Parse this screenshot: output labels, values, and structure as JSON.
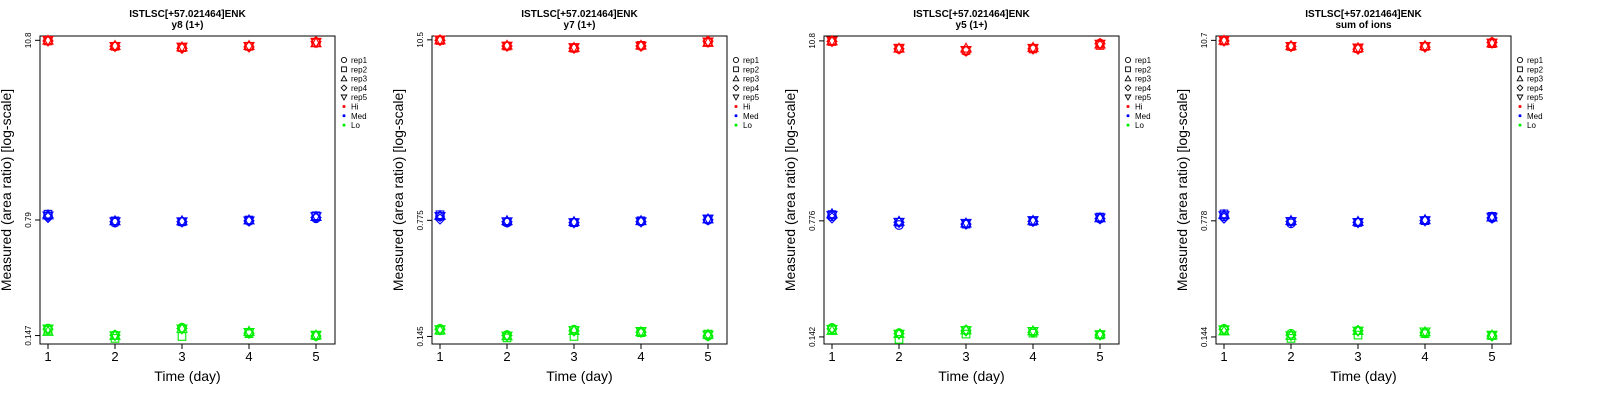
{
  "figure": {
    "xlabel": "Time (day)",
    "ylabel": "Measured (area ratio) [log-scale]",
    "legend": {
      "placement": "top-right-outside",
      "entries": [
        {
          "label": "rep1",
          "marker": "circle"
        },
        {
          "label": "rep2",
          "marker": "square"
        },
        {
          "label": "rep3",
          "marker": "triangle-up"
        },
        {
          "label": "rep4",
          "marker": "diamond"
        },
        {
          "label": "rep5",
          "marker": "triangle-down"
        },
        {
          "label": "Hi",
          "marker": "dot",
          "color": "#ff0000"
        },
        {
          "label": "Med",
          "marker": "dot",
          "color": "#0000ff"
        },
        {
          "label": "Lo",
          "marker": "dot",
          "color": "#00ee00"
        }
      ]
    },
    "colors": {
      "Hi": "#ff0000",
      "Med": "#0000ff",
      "Lo": "#00ee00"
    }
  },
  "chart_data": [
    {
      "type": "scatter",
      "title": "ISTLSC[+57.021464]ENK",
      "subtitle": "y8 (1+)",
      "y_scale": "log",
      "x": [
        1,
        2,
        3,
        4,
        5
      ],
      "yticks": [
        {
          "label": "0.147",
          "value": 0.147
        },
        {
          "label": "0.79",
          "value": 0.79
        },
        {
          "label": "10.8",
          "value": 10.8
        }
      ],
      "ylim": [
        0.13,
        11.5
      ],
      "series": [
        {
          "level": "Hi",
          "replicates": [
            [
              10.8,
              9.9,
              9.7,
              9.9,
              10.4
            ],
            [
              10.7,
              9.9,
              9.7,
              9.9,
              10.5
            ],
            [
              10.8,
              10.0,
              9.8,
              10.0,
              10.4
            ],
            [
              10.7,
              9.9,
              9.6,
              9.8,
              10.6
            ],
            [
              10.8,
              9.9,
              9.8,
              9.9,
              10.5
            ]
          ]
        },
        {
          "level": "Med",
          "replicates": [
            [
              0.84,
              0.76,
              0.77,
              0.78,
              0.81
            ],
            [
              0.86,
              0.78,
              0.77,
              0.79,
              0.84
            ],
            [
              0.85,
              0.78,
              0.78,
              0.79,
              0.83
            ],
            [
              0.82,
              0.77,
              0.77,
              0.78,
              0.82
            ],
            [
              0.84,
              0.77,
              0.77,
              0.78,
              0.83
            ]
          ]
        },
        {
          "level": "Lo",
          "replicates": [
            [
              0.163,
              0.148,
              0.165,
              0.153,
              0.146
            ],
            [
              0.159,
              0.141,
              0.145,
              0.151,
              0.147
            ],
            [
              0.156,
              0.147,
              0.163,
              0.156,
              0.148
            ],
            [
              0.161,
              0.148,
              0.163,
              0.152,
              0.146
            ],
            [
              0.162,
              0.147,
              0.162,
              0.154,
              0.148
            ]
          ]
        }
      ]
    },
    {
      "type": "scatter",
      "title": "ISTLSC[+57.021464]ENK",
      "subtitle": "y7 (1+)",
      "y_scale": "log",
      "x": [
        1,
        2,
        3,
        4,
        5
      ],
      "yticks": [
        {
          "label": "0.145",
          "value": 0.145
        },
        {
          "label": "0.775",
          "value": 0.775
        },
        {
          "label": "10.5",
          "value": 10.5
        }
      ],
      "ylim": [
        0.13,
        11.1
      ],
      "series": [
        {
          "level": "Hi",
          "replicates": [
            [
              10.5,
              9.6,
              9.3,
              9.6,
              10.1
            ],
            [
              10.4,
              9.6,
              9.3,
              9.7,
              10.2
            ],
            [
              10.5,
              9.7,
              9.4,
              9.7,
              10.1
            ],
            [
              10.4,
              9.6,
              9.3,
              9.6,
              10.3
            ],
            [
              10.5,
              9.6,
              9.4,
              9.6,
              10.2
            ]
          ]
        },
        {
          "level": "Med",
          "replicates": [
            [
              0.82,
              0.75,
              0.75,
              0.76,
              0.78
            ],
            [
              0.84,
              0.76,
              0.75,
              0.77,
              0.79
            ],
            [
              0.83,
              0.77,
              0.76,
              0.77,
              0.79
            ],
            [
              0.79,
              0.76,
              0.75,
              0.76,
              0.78
            ],
            [
              0.82,
              0.76,
              0.75,
              0.76,
              0.79
            ]
          ]
        },
        {
          "level": "Lo",
          "replicates": [
            [
              0.162,
              0.148,
              0.16,
              0.155,
              0.146
            ],
            [
              0.158,
              0.142,
              0.145,
              0.153,
              0.15
            ],
            [
              0.159,
              0.146,
              0.158,
              0.155,
              0.149
            ],
            [
              0.161,
              0.147,
              0.157,
              0.154,
              0.146
            ],
            [
              0.16,
              0.146,
              0.158,
              0.156,
              0.148
            ]
          ]
        }
      ]
    },
    {
      "type": "scatter",
      "title": "ISTLSC[+57.021464]ENK",
      "subtitle": "y5 (1+)",
      "y_scale": "log",
      "x": [
        1,
        2,
        3,
        4,
        5
      ],
      "yticks": [
        {
          "label": "0.142",
          "value": 0.142
        },
        {
          "label": "0.776",
          "value": 0.776
        },
        {
          "label": "10.8",
          "value": 10.8
        }
      ],
      "ylim": [
        0.128,
        11.6
      ],
      "series": [
        {
          "level": "Hi",
          "replicates": [
            [
              10.8,
              9.6,
              9.3,
              9.7,
              10.4
            ],
            [
              10.7,
              9.7,
              9.4,
              9.6,
              10.1
            ],
            [
              10.8,
              9.7,
              9.7,
              9.8,
              10.3
            ],
            [
              10.7,
              9.6,
              9.3,
              9.6,
              10.4
            ],
            [
              10.8,
              9.7,
              9.4,
              9.7,
              10.3
            ]
          ]
        },
        {
          "level": "Med",
          "replicates": [
            [
              0.83,
              0.73,
              0.74,
              0.77,
              0.8
            ],
            [
              0.85,
              0.76,
              0.74,
              0.77,
              0.82
            ],
            [
              0.86,
              0.77,
              0.75,
              0.78,
              0.81
            ],
            [
              0.81,
              0.76,
              0.74,
              0.77,
              0.8
            ],
            [
              0.84,
              0.76,
              0.75,
              0.78,
              0.81
            ]
          ]
        },
        {
          "level": "Lo",
          "replicates": [
            [
              0.162,
              0.15,
              0.157,
              0.153,
              0.147
            ],
            [
              0.158,
              0.137,
              0.148,
              0.15,
              0.146
            ],
            [
              0.156,
              0.149,
              0.157,
              0.155,
              0.148
            ],
            [
              0.16,
              0.149,
              0.155,
              0.152,
              0.146
            ],
            [
              0.159,
              0.148,
              0.156,
              0.154,
              0.147
            ]
          ]
        }
      ]
    },
    {
      "type": "scatter",
      "title": "ISTLSC[+57.021464]ENK",
      "subtitle": "sum of ions",
      "y_scale": "log",
      "x": [
        1,
        2,
        3,
        4,
        5
      ],
      "yticks": [
        {
          "label": "0.144",
          "value": 0.144
        },
        {
          "label": "0.778",
          "value": 0.778
        },
        {
          "label": "10.7",
          "value": 10.7
        }
      ],
      "ylim": [
        0.13,
        11.4
      ],
      "series": [
        {
          "level": "Hi",
          "replicates": [
            [
              10.7,
              9.8,
              9.5,
              9.8,
              10.4
            ],
            [
              10.6,
              9.8,
              9.5,
              9.8,
              10.2
            ],
            [
              10.7,
              9.9,
              9.6,
              9.9,
              10.3
            ],
            [
              10.6,
              9.8,
              9.4,
              9.7,
              10.4
            ],
            [
              10.7,
              9.8,
              9.6,
              9.8,
              10.3
            ]
          ]
        },
        {
          "level": "Med",
          "replicates": [
            [
              0.83,
              0.75,
              0.76,
              0.78,
              0.81
            ],
            [
              0.86,
              0.77,
              0.76,
              0.78,
              0.83
            ],
            [
              0.85,
              0.78,
              0.77,
              0.79,
              0.82
            ],
            [
              0.81,
              0.77,
              0.76,
              0.78,
              0.81
            ],
            [
              0.84,
              0.77,
              0.76,
              0.78,
              0.82
            ]
          ]
        },
        {
          "level": "Lo",
          "replicates": [
            [
              0.162,
              0.151,
              0.158,
              0.153,
              0.147
            ],
            [
              0.159,
              0.141,
              0.148,
              0.151,
              0.147
            ],
            [
              0.157,
              0.147,
              0.158,
              0.155,
              0.148
            ],
            [
              0.161,
              0.148,
              0.158,
              0.153,
              0.146
            ],
            [
              0.16,
              0.147,
              0.157,
              0.155,
              0.148
            ]
          ]
        }
      ]
    }
  ]
}
